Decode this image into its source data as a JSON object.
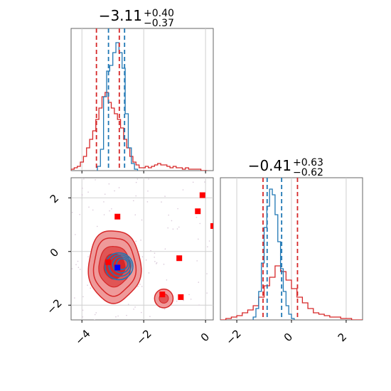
{
  "chart_data": [
    {
      "type": "histogram",
      "panel": "top-left marginal",
      "title": {
        "median": "−3.11",
        "plus": "+0.40",
        "minus": "−0.37"
      },
      "xlim": [
        -4.35,
        0.25
      ],
      "grid": true,
      "series": [
        {
          "name": "",
          "color": "#d62728",
          "bins_x": [
            -4.3,
            -4.2,
            -4.1,
            -4.0,
            -3.9,
            -3.8,
            -3.7,
            -3.6,
            -3.5,
            -3.4,
            -3.3,
            -3.2,
            -3.1,
            -3.0,
            -2.9,
            -2.8,
            -2.7,
            -2.6,
            -2.5,
            -2.4,
            -2.3,
            -2.2,
            -2.1,
            -2.0,
            -1.9,
            -1.8,
            -1.7,
            -1.6,
            -1.5,
            -1.4,
            -1.3,
            -1.2,
            -1.1,
            -1.0,
            -0.9,
            -0.8,
            -0.7,
            -0.6,
            -0.5,
            -0.4,
            -0.3,
            -0.2,
            -0.1,
            0.0
          ],
          "heights": [
            0.01,
            0.02,
            0.03,
            0.06,
            0.1,
            0.16,
            0.22,
            0.28,
            0.36,
            0.44,
            0.52,
            0.55,
            0.48,
            0.44,
            0.4,
            0.36,
            0.3,
            0.22,
            0.16,
            0.1,
            0.06,
            0.04,
            0.02,
            0.02,
            0.03,
            0.02,
            0.03,
            0.04,
            0.05,
            0.04,
            0.04,
            0.03,
            0.02,
            0.03,
            0.02,
            0.02,
            0.01,
            0.02,
            0.01,
            0.01,
            0.01,
            0.01,
            0.0,
            0.0
          ]
        },
        {
          "name": "",
          "color": "#1f77b4",
          "bins_x": [
            -3.45,
            -3.35,
            -3.25,
            -3.15,
            -3.05,
            -2.95,
            -2.85,
            -2.75,
            -2.65,
            -2.55,
            -2.45,
            -2.35,
            -2.25
          ],
          "heights": [
            0.03,
            0.15,
            0.52,
            0.7,
            0.74,
            0.83,
            0.9,
            0.83,
            0.72,
            0.4,
            0.16,
            0.05,
            0.01
          ]
        }
      ],
      "quantile_lines": [
        {
          "color": "#d62728",
          "x": [
            -3.53,
            -2.79
          ]
        },
        {
          "color": "#1f77b4",
          "x": [
            -3.14,
            -2.62
          ]
        }
      ]
    },
    {
      "type": "histogram",
      "panel": "bottom-right marginal",
      "title": {
        "median": "−0.41",
        "plus": "+0.63",
        "minus": "−0.62"
      },
      "xlim": [
        -2.6,
        2.6
      ],
      "xticks": [
        "−2",
        "0",
        "2"
      ],
      "grid": true,
      "series": [
        {
          "name": "",
          "color": "#d62728",
          "bins_x": [
            -2.5,
            -2.3,
            -2.1,
            -1.9,
            -1.7,
            -1.5,
            -1.3,
            -1.1,
            -0.9,
            -0.7,
            -0.5,
            -0.3,
            -0.1,
            0.1,
            0.3,
            0.5,
            0.7,
            0.9,
            1.1,
            1.3,
            1.5,
            1.7,
            1.9,
            2.1,
            2.3,
            2.5
          ],
          "heights": [
            0.0,
            0.01,
            0.02,
            0.03,
            0.05,
            0.07,
            0.1,
            0.16,
            0.24,
            0.3,
            0.38,
            0.34,
            0.28,
            0.22,
            0.16,
            0.12,
            0.08,
            0.05,
            0.04,
            0.03,
            0.02,
            0.02,
            0.01,
            0.01,
            0.0,
            0.0
          ]
        },
        {
          "name": "",
          "color": "#1f77b4",
          "bins_x": [
            -1.35,
            -1.25,
            -1.15,
            -1.05,
            -0.95,
            -0.85,
            -0.75,
            -0.65,
            -0.55,
            -0.45,
            -0.35,
            -0.25,
            -0.15,
            -0.05,
            0.05
          ],
          "heights": [
            0.02,
            0.08,
            0.2,
            0.4,
            0.65,
            0.8,
            0.92,
            0.88,
            0.74,
            0.55,
            0.36,
            0.2,
            0.1,
            0.04,
            0.01
          ]
        }
      ],
      "quantile_lines": [
        {
          "color": "#d62728",
          "x": [
            -1.04,
            0.22
          ]
        },
        {
          "color": "#1f77b4",
          "x": [
            -0.89,
            -0.36
          ]
        }
      ]
    },
    {
      "type": "scatter",
      "panel": "bottom-left joint (contours + points)",
      "xlim": [
        -4.35,
        0.25
      ],
      "ylim": [
        -2.55,
        2.75
      ],
      "xticks": [
        "−4",
        "−2",
        "0"
      ],
      "yticks": [
        "−2",
        "0",
        "2"
      ],
      "grid": true,
      "red_contours": {
        "color": "#d62728",
        "main_center": [
          -2.95,
          -0.55
        ],
        "main_radii": [
          0.85,
          1.35
        ],
        "island_center": [
          -1.35,
          -1.75
        ],
        "island_radii": [
          0.3,
          0.35
        ]
      },
      "blue_contours": {
        "color": "#1f77b4",
        "center": [
          -2.8,
          -0.55
        ],
        "radii": [
          0.45,
          0.5
        ]
      },
      "red_points": [
        {
          "x": -2.85,
          "y": 1.3
        },
        {
          "x": -3.15,
          "y": -0.4
        },
        {
          "x": -0.85,
          "y": -0.25
        },
        {
          "x": -1.4,
          "y": -1.6
        },
        {
          "x": -0.8,
          "y": -1.7
        },
        {
          "x": -0.25,
          "y": 1.5
        },
        {
          "x": -0.1,
          "y": 2.1
        },
        {
          "x": 0.25,
          "y": 0.95
        }
      ],
      "blue_points": [
        {
          "x": -2.85,
          "y": -0.6
        }
      ]
    }
  ]
}
